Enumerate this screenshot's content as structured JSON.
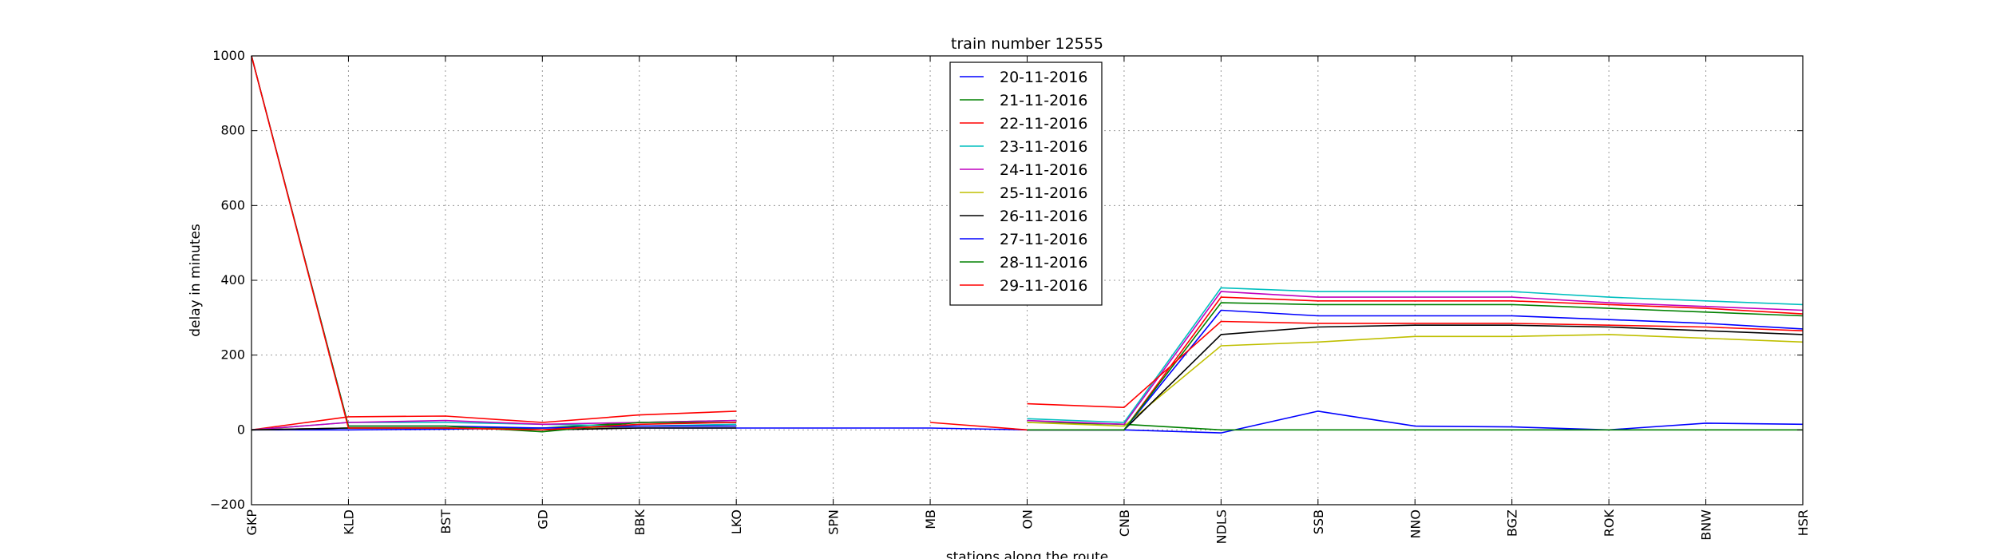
{
  "chart_data": {
    "type": "line",
    "title": "train number 12555",
    "xlabel": "stations along the route",
    "ylabel": "delay in minutes",
    "categories": [
      "GKP",
      "KLD",
      "BST",
      "GD",
      "BBK",
      "LKO",
      "SPN",
      "MB",
      "ON",
      "CNB",
      "NDLS",
      "SSB",
      "NNO",
      "BGZ",
      "ROK",
      "BNW",
      "HSR"
    ],
    "ylim": [
      -200,
      1000
    ],
    "yticks": [
      -200,
      0,
      200,
      400,
      600,
      800,
      1000
    ],
    "grid": true,
    "legend_position": "top-center",
    "series": [
      {
        "name": "20-11-2016",
        "color": "#0000ff",
        "values": [
          0,
          0,
          2,
          5,
          5,
          5,
          5,
          5,
          0,
          0,
          -8,
          50,
          10,
          8,
          0,
          18,
          15
        ]
      },
      {
        "name": "21-11-2016",
        "color": "#008000",
        "values": [
          0,
          5,
          5,
          5,
          20,
          25,
          null,
          null,
          20,
          15,
          0,
          0,
          0,
          0,
          0,
          0,
          0
        ]
      },
      {
        "name": "22-11-2016",
        "color": "#ff0000",
        "values": [
          0,
          35,
          37,
          20,
          40,
          50,
          null,
          20,
          0,
          0,
          355,
          345,
          345,
          345,
          335,
          325,
          310
        ]
      },
      {
        "name": "23-11-2016",
        "color": "#00bfbf",
        "values": [
          0,
          20,
          20,
          15,
          10,
          15,
          null,
          null,
          30,
          20,
          380,
          370,
          370,
          370,
          355,
          345,
          335
        ]
      },
      {
        "name": "24-11-2016",
        "color": "#bf00bf",
        "values": [
          0,
          20,
          25,
          15,
          20,
          25,
          null,
          null,
          25,
          15,
          370,
          355,
          355,
          355,
          340,
          330,
          320
        ]
      },
      {
        "name": "25-11-2016",
        "color": "#bfbf00",
        "values": [
          0,
          5,
          5,
          0,
          10,
          10,
          null,
          null,
          20,
          10,
          225,
          235,
          250,
          250,
          255,
          245,
          235
        ]
      },
      {
        "name": "26-11-2016",
        "color": "#000000",
        "values": [
          0,
          5,
          5,
          0,
          5,
          5,
          null,
          null,
          0,
          0,
          255,
          275,
          280,
          280,
          275,
          265,
          255
        ]
      },
      {
        "name": "27-11-2016",
        "color": "#0000ff",
        "values": [
          1000,
          10,
          10,
          5,
          10,
          10,
          null,
          null,
          0,
          0,
          320,
          305,
          305,
          305,
          295,
          285,
          270
        ]
      },
      {
        "name": "28-11-2016",
        "color": "#008000",
        "values": [
          1000,
          10,
          10,
          -5,
          20,
          20,
          null,
          null,
          0,
          0,
          340,
          335,
          335,
          335,
          325,
          315,
          305
        ]
      },
      {
        "name": "29-11-2016",
        "color": "#ff0000",
        "values": [
          1000,
          5,
          5,
          0,
          15,
          20,
          null,
          null,
          70,
          60,
          290,
          285,
          285,
          285,
          280,
          275,
          265
        ]
      }
    ]
  }
}
